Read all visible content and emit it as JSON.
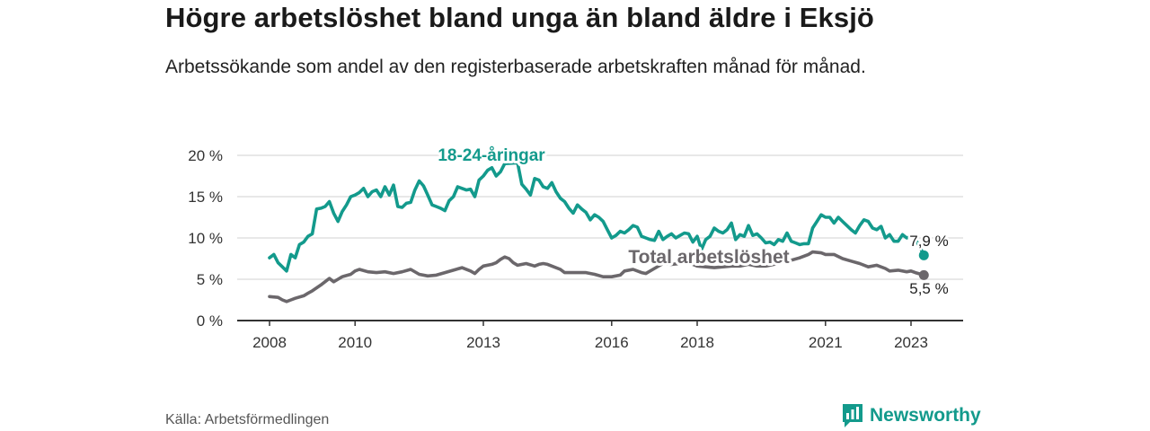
{
  "title": "Högre arbetslöshet bland unga än bland äldre i Eksjö",
  "subtitle": "Arbetssökande som andel av den registerbaserade arbetskraften månad för månad.",
  "source": "Källa: Arbetsförmedlingen",
  "brand": "Newsworthy",
  "colors": {
    "youth": "#139a8c",
    "total": "#6b676b",
    "grid": "#d9d9d9",
    "axis": "#333333",
    "brand": "#139a8c"
  },
  "icons": {
    "brand": "bar-chart-logo-icon"
  },
  "chart_data": {
    "type": "line",
    "title": "Högre arbetslöshet bland unga än bland äldre i Eksjö",
    "xlabel": "",
    "ylabel": "",
    "xlim": [
      2008,
      2023.75
    ],
    "ylim": [
      0,
      20
    ],
    "x_ticks": [
      2008,
      2010,
      2013,
      2016,
      2018,
      2021,
      2023
    ],
    "x_tick_labels": [
      "2008",
      "2010",
      "2013",
      "2016",
      "2018",
      "2021",
      "2023"
    ],
    "y_ticks": [
      0,
      5,
      10,
      15,
      20
    ],
    "y_tick_labels": [
      "0 %",
      "5 %",
      "10 %",
      "15 %",
      "20 %"
    ],
    "grid": true,
    "series": [
      {
        "name": "18-24-åringar",
        "label": "18-24-åringar",
        "end_label": "7,9 %",
        "points": [
          [
            2008.0,
            7.6
          ],
          [
            2008.1,
            8.0
          ],
          [
            2008.2,
            7.0
          ],
          [
            2008.3,
            6.5
          ],
          [
            2008.4,
            6.0
          ],
          [
            2008.5,
            8.0
          ],
          [
            2008.6,
            7.6
          ],
          [
            2008.7,
            9.2
          ],
          [
            2008.8,
            9.5
          ],
          [
            2008.9,
            10.2
          ],
          [
            2009.0,
            10.5
          ],
          [
            2009.1,
            13.5
          ],
          [
            2009.2,
            13.6
          ],
          [
            2009.3,
            13.8
          ],
          [
            2009.4,
            14.4
          ],
          [
            2009.5,
            13.0
          ],
          [
            2009.6,
            12.0
          ],
          [
            2009.7,
            13.2
          ],
          [
            2009.8,
            14.0
          ],
          [
            2009.9,
            15.0
          ],
          [
            2010.0,
            15.2
          ],
          [
            2010.1,
            15.5
          ],
          [
            2010.2,
            16.0
          ],
          [
            2010.3,
            15.0
          ],
          [
            2010.4,
            15.6
          ],
          [
            2010.5,
            15.8
          ],
          [
            2010.6,
            15.0
          ],
          [
            2010.7,
            16.2
          ],
          [
            2010.8,
            15.2
          ],
          [
            2010.9,
            16.4
          ],
          [
            2011.0,
            13.8
          ],
          [
            2011.1,
            13.7
          ],
          [
            2011.2,
            14.2
          ],
          [
            2011.3,
            14.3
          ],
          [
            2011.4,
            15.8
          ],
          [
            2011.5,
            16.9
          ],
          [
            2011.6,
            16.3
          ],
          [
            2011.7,
            15.2
          ],
          [
            2011.8,
            14.0
          ],
          [
            2011.9,
            13.8
          ],
          [
            2012.0,
            13.6
          ],
          [
            2012.1,
            13.3
          ],
          [
            2012.2,
            14.5
          ],
          [
            2012.3,
            15.0
          ],
          [
            2012.4,
            16.2
          ],
          [
            2012.5,
            16.0
          ],
          [
            2012.6,
            15.8
          ],
          [
            2012.7,
            15.9
          ],
          [
            2012.8,
            15.0
          ],
          [
            2012.9,
            17.0
          ],
          [
            2013.0,
            17.5
          ],
          [
            2013.1,
            18.2
          ],
          [
            2013.2,
            18.5
          ],
          [
            2013.3,
            17.5
          ],
          [
            2013.4,
            18.0
          ],
          [
            2013.5,
            19.0
          ],
          [
            2013.8,
            19.1
          ],
          [
            2013.9,
            16.5
          ],
          [
            2014.0,
            15.9
          ],
          [
            2014.1,
            15.2
          ],
          [
            2014.2,
            17.2
          ],
          [
            2014.3,
            17.0
          ],
          [
            2014.4,
            16.2
          ],
          [
            2014.5,
            16.0
          ],
          [
            2014.6,
            16.7
          ],
          [
            2014.7,
            15.6
          ],
          [
            2014.8,
            14.8
          ],
          [
            2014.9,
            14.4
          ],
          [
            2015.0,
            13.6
          ],
          [
            2015.1,
            13.0
          ],
          [
            2015.2,
            14.0
          ],
          [
            2015.3,
            13.5
          ],
          [
            2015.4,
            13.1
          ],
          [
            2015.5,
            12.2
          ],
          [
            2015.6,
            12.8
          ],
          [
            2015.7,
            12.5
          ],
          [
            2015.8,
            12.0
          ],
          [
            2015.9,
            11.0
          ],
          [
            2016.0,
            10.0
          ],
          [
            2016.1,
            10.3
          ],
          [
            2016.2,
            10.8
          ],
          [
            2016.3,
            10.6
          ],
          [
            2016.4,
            11.0
          ],
          [
            2016.5,
            11.5
          ],
          [
            2016.6,
            11.3
          ],
          [
            2016.7,
            10.2
          ],
          [
            2016.8,
            10.0
          ],
          [
            2016.9,
            9.8
          ],
          [
            2017.0,
            9.7
          ],
          [
            2017.1,
            10.8
          ],
          [
            2017.2,
            9.8
          ],
          [
            2017.3,
            10.2
          ],
          [
            2017.4,
            10.5
          ],
          [
            2017.5,
            10.0
          ],
          [
            2017.6,
            10.3
          ],
          [
            2017.7,
            10.6
          ],
          [
            2017.8,
            10.5
          ],
          [
            2017.9,
            9.5
          ],
          [
            2018.0,
            10.2
          ],
          [
            2018.1,
            8.6
          ],
          [
            2018.2,
            9.8
          ],
          [
            2018.3,
            10.2
          ],
          [
            2018.4,
            11.2
          ],
          [
            2018.5,
            10.8
          ],
          [
            2018.6,
            10.6
          ],
          [
            2018.7,
            11.0
          ],
          [
            2018.8,
            11.8
          ],
          [
            2018.9,
            9.8
          ],
          [
            2019.0,
            10.4
          ],
          [
            2019.1,
            10.2
          ],
          [
            2019.2,
            11.5
          ],
          [
            2019.3,
            10.3
          ],
          [
            2019.4,
            10.5
          ],
          [
            2019.5,
            10.0
          ],
          [
            2019.6,
            9.4
          ],
          [
            2019.7,
            9.5
          ],
          [
            2019.8,
            9.2
          ],
          [
            2019.9,
            9.8
          ],
          [
            2020.0,
            9.6
          ],
          [
            2020.1,
            10.6
          ],
          [
            2020.2,
            9.6
          ],
          [
            2020.3,
            9.4
          ],
          [
            2020.4,
            9.2
          ],
          [
            2020.5,
            9.3
          ],
          [
            2020.6,
            9.3
          ],
          [
            2020.7,
            11.2
          ],
          [
            2020.8,
            12.0
          ],
          [
            2020.9,
            12.8
          ],
          [
            2021.0,
            12.5
          ],
          [
            2021.1,
            12.5
          ],
          [
            2021.2,
            11.8
          ],
          [
            2021.3,
            12.5
          ],
          [
            2021.4,
            12.0
          ],
          [
            2021.5,
            11.5
          ],
          [
            2021.6,
            11.0
          ],
          [
            2021.7,
            10.6
          ],
          [
            2021.8,
            11.5
          ],
          [
            2021.9,
            12.2
          ],
          [
            2022.0,
            12.0
          ],
          [
            2022.1,
            11.2
          ],
          [
            2022.2,
            11.0
          ],
          [
            2022.3,
            11.4
          ],
          [
            2022.4,
            10.0
          ],
          [
            2022.5,
            10.4
          ],
          [
            2022.6,
            9.6
          ],
          [
            2022.7,
            9.6
          ],
          [
            2022.8,
            10.4
          ],
          [
            2022.9,
            10.0
          ],
          [
            2023.0,
            10.2
          ],
          [
            2023.1,
            9.8
          ],
          [
            2023.2,
            9.0
          ],
          [
            2023.3,
            7.9
          ]
        ]
      },
      {
        "name": "Total arbetslöshet",
        "label": "Total arbetslöshet",
        "end_label": "5,5 %",
        "points": [
          [
            2008.0,
            2.9
          ],
          [
            2008.2,
            2.8
          ],
          [
            2008.3,
            2.5
          ],
          [
            2008.4,
            2.3
          ],
          [
            2008.5,
            2.5
          ],
          [
            2008.6,
            2.7
          ],
          [
            2008.8,
            3.0
          ],
          [
            2008.9,
            3.3
          ],
          [
            2009.0,
            3.6
          ],
          [
            2009.2,
            4.3
          ],
          [
            2009.4,
            5.1
          ],
          [
            2009.5,
            4.7
          ],
          [
            2009.6,
            5.0
          ],
          [
            2009.7,
            5.3
          ],
          [
            2009.9,
            5.6
          ],
          [
            2010.0,
            6.0
          ],
          [
            2010.1,
            6.2
          ],
          [
            2010.3,
            5.9
          ],
          [
            2010.5,
            5.8
          ],
          [
            2010.7,
            5.9
          ],
          [
            2010.9,
            5.7
          ],
          [
            2011.1,
            5.9
          ],
          [
            2011.3,
            6.2
          ],
          [
            2011.5,
            5.6
          ],
          [
            2011.7,
            5.4
          ],
          [
            2011.9,
            5.5
          ],
          [
            2012.1,
            5.8
          ],
          [
            2012.3,
            6.1
          ],
          [
            2012.5,
            6.4
          ],
          [
            2012.7,
            6.0
          ],
          [
            2012.8,
            5.7
          ],
          [
            2012.9,
            6.2
          ],
          [
            2013.0,
            6.6
          ],
          [
            2013.2,
            6.8
          ],
          [
            2013.3,
            7.0
          ],
          [
            2013.4,
            7.4
          ],
          [
            2013.5,
            7.7
          ],
          [
            2013.6,
            7.5
          ],
          [
            2013.7,
            7.0
          ],
          [
            2013.8,
            6.7
          ],
          [
            2014.0,
            6.9
          ],
          [
            2014.2,
            6.6
          ],
          [
            2014.3,
            6.8
          ],
          [
            2014.4,
            6.9
          ],
          [
            2014.5,
            6.8
          ],
          [
            2014.6,
            6.6
          ],
          [
            2014.8,
            6.2
          ],
          [
            2014.9,
            5.8
          ],
          [
            2015.0,
            5.8
          ],
          [
            2015.2,
            5.8
          ],
          [
            2015.4,
            5.8
          ],
          [
            2015.6,
            5.6
          ],
          [
            2015.8,
            5.3
          ],
          [
            2016.0,
            5.3
          ],
          [
            2016.2,
            5.5
          ],
          [
            2016.3,
            6.0
          ],
          [
            2016.5,
            6.2
          ],
          [
            2016.7,
            5.8
          ],
          [
            2016.8,
            5.7
          ],
          [
            2017.0,
            6.3
          ],
          [
            2017.2,
            6.9
          ],
          [
            2017.4,
            6.8
          ],
          [
            2017.6,
            6.9
          ],
          [
            2017.8,
            7.0
          ],
          [
            2018.0,
            6.6
          ],
          [
            2018.2,
            6.5
          ],
          [
            2018.4,
            6.4
          ],
          [
            2018.6,
            6.5
          ],
          [
            2018.8,
            6.6
          ],
          [
            2019.0,
            6.6
          ],
          [
            2019.2,
            6.8
          ],
          [
            2019.4,
            6.6
          ],
          [
            2019.6,
            6.6
          ],
          [
            2019.8,
            6.8
          ],
          [
            2020.0,
            7.1
          ],
          [
            2020.2,
            7.3
          ],
          [
            2020.4,
            7.6
          ],
          [
            2020.6,
            8.0
          ],
          [
            2020.7,
            8.3
          ],
          [
            2020.9,
            8.2
          ],
          [
            2021.0,
            8.0
          ],
          [
            2021.2,
            8.0
          ],
          [
            2021.4,
            7.5
          ],
          [
            2021.6,
            7.2
          ],
          [
            2021.8,
            6.9
          ],
          [
            2022.0,
            6.5
          ],
          [
            2022.2,
            6.7
          ],
          [
            2022.4,
            6.3
          ],
          [
            2022.5,
            6.0
          ],
          [
            2022.7,
            6.1
          ],
          [
            2022.9,
            5.9
          ],
          [
            2023.0,
            6.0
          ],
          [
            2023.1,
            5.8
          ],
          [
            2023.3,
            5.5
          ]
        ]
      }
    ]
  }
}
